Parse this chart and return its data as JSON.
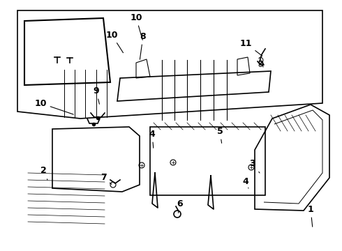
{
  "background_color": "#ffffff",
  "line_color": "#000000",
  "line_width": 1.2,
  "label_fontsize": 9
}
